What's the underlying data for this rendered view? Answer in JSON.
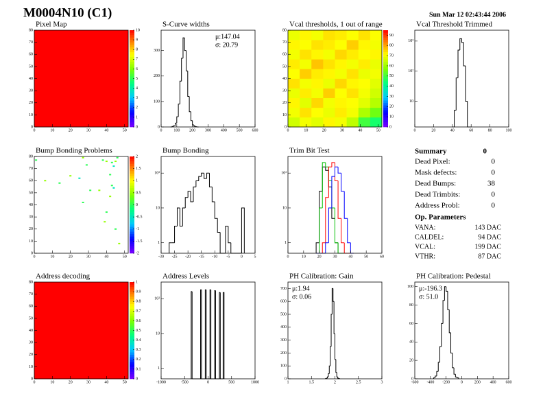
{
  "header": {
    "title": "M0004N10 (C1)",
    "date": "Sun Mar 12 02:43:44 2006"
  },
  "chart_data": [
    {
      "type": "heatmap",
      "title": "Pixel Map",
      "xlim": [
        0,
        52
      ],
      "xticks": [
        0,
        10,
        20,
        30,
        40,
        50
      ],
      "ylim": [
        0,
        80
      ],
      "yticks": [
        0,
        10,
        20,
        30,
        40,
        50,
        60,
        70,
        80
      ],
      "zlim": [
        0,
        10
      ],
      "zticks": [
        0,
        1,
        2,
        3,
        4,
        5,
        6,
        7,
        8,
        9,
        10
      ],
      "z": [
        [
          10
        ]
      ]
    },
    {
      "type": "histogram",
      "title": "S-Curve widths",
      "xlim": [
        0,
        600
      ],
      "xticks": [
        0,
        100,
        200,
        300,
        400,
        500,
        600
      ],
      "ylim": [
        0,
        380
      ],
      "yticks": [
        0,
        100,
        200,
        300
      ],
      "log_y": false,
      "stats": [
        "μ:147.04",
        "σ: 20.79"
      ],
      "stats_corner": "top-right",
      "bins": [
        60,
        70,
        80,
        90,
        100,
        110,
        120,
        130,
        140,
        150,
        160,
        170,
        180,
        190,
        200,
        210,
        220,
        230,
        240
      ],
      "values": [
        0,
        2,
        5,
        15,
        40,
        90,
        180,
        270,
        350,
        300,
        220,
        120,
        60,
        25,
        8,
        3,
        1,
        0
      ],
      "color": "#000000"
    },
    {
      "type": "heatmap",
      "title": "Vcal thresholds, 1 out of range",
      "xlim": [
        0,
        52
      ],
      "xticks": [
        0,
        10,
        20,
        30,
        40,
        50
      ],
      "ylim": [
        0,
        80
      ],
      "yticks": [
        0,
        10,
        20,
        30,
        40,
        50,
        60,
        70,
        80
      ],
      "zlim": [
        0,
        95
      ],
      "zticks": [
        0,
        10,
        20,
        30,
        40,
        50,
        60,
        70,
        80,
        90
      ],
      "z": [
        [
          66,
          70,
          68,
          72,
          70,
          64,
          50,
          45
        ],
        [
          70,
          74,
          71,
          69,
          73,
          70,
          62,
          55
        ],
        [
          72,
          68,
          75,
          70,
          72,
          71,
          68,
          63
        ],
        [
          69,
          73,
          70,
          76,
          71,
          74,
          70,
          66
        ],
        [
          74,
          70,
          72,
          69,
          75,
          72,
          71,
          68
        ],
        [
          71,
          76,
          73,
          72,
          70,
          74,
          69,
          70
        ],
        [
          73,
          70,
          77,
          74,
          72,
          70,
          73,
          69
        ],
        [
          70,
          74,
          72,
          70,
          75,
          73,
          71,
          72
        ],
        [
          72,
          71,
          74,
          73,
          71,
          76,
          72,
          70
        ],
        [
          69,
          72,
          70,
          74,
          73,
          71,
          74,
          71
        ]
      ]
    },
    {
      "type": "histogram",
      "title": "Vcal Threshold Trimmed",
      "xlim": [
        0,
        100
      ],
      "xticks": [
        0,
        20,
        40,
        60,
        80,
        100
      ],
      "ylim": [
        1.4,
        2300
      ],
      "log_y": true,
      "yticks": [
        {
          "value": 10,
          "label": "10"
        },
        {
          "value": 100,
          "label": "10²"
        },
        {
          "value": 1000,
          "label": "10³"
        }
      ],
      "bins": [
        40,
        42,
        44,
        46,
        48,
        50,
        52,
        54,
        56,
        58,
        60
      ],
      "values": [
        0,
        5,
        60,
        500,
        1200,
        900,
        150,
        10,
        1,
        0
      ],
      "color": "#000000"
    },
    {
      "type": "scatter",
      "title": "Bump Bonding Problems",
      "xlim": [
        0,
        52
      ],
      "xticks": [
        0,
        10,
        20,
        30,
        40,
        50
      ],
      "ylim": [
        0,
        80
      ],
      "yticks": [
        0,
        10,
        20,
        30,
        40,
        50,
        60,
        70,
        80
      ],
      "zlim": [
        -2,
        2
      ],
      "zticks": [
        {
          "value": -2,
          "label": "-2"
        },
        {
          "value": -1.5,
          "label": "-1.5"
        },
        {
          "value": -1,
          "label": "-1"
        },
        {
          "value": -0.5,
          "label": "-0.5"
        },
        0,
        0.5,
        1,
        1.5,
        2
      ],
      "x": [
        1,
        27,
        29,
        38,
        40,
        43,
        44,
        45,
        46,
        42,
        6,
        14,
        25,
        20,
        27,
        31,
        36,
        43,
        44,
        42,
        40,
        39,
        45,
        47
      ],
      "y": [
        77,
        79,
        73,
        77,
        76,
        75,
        72,
        76,
        79,
        65,
        60,
        58,
        62,
        64,
        42,
        52,
        52,
        56,
        54,
        47,
        34,
        26,
        20,
        8
      ],
      "z": [
        0,
        0.5,
        0,
        0,
        0.5,
        0,
        -0.5,
        0.5,
        0,
        0,
        0.5,
        0,
        -0.5,
        0.5,
        0,
        0,
        0.5,
        0,
        -0.5,
        0.5,
        0,
        0.5,
        0,
        0.5
      ]
    },
    {
      "type": "histogram",
      "title": "Bump Bonding",
      "xlim": [
        -30,
        5
      ],
      "xticks": [
        -30,
        -25,
        -20,
        -15,
        -10,
        -5,
        0,
        5
      ],
      "ylim": [
        0.5,
        300
      ],
      "log_y": true,
      "yticks": [
        1,
        10,
        {
          "value": 100,
          "label": "10²"
        }
      ],
      "bins": [
        -27,
        -26,
        -25,
        -24,
        -23,
        -22,
        -21,
        -20,
        -19,
        -18,
        -17,
        -16,
        -15,
        -14,
        -13,
        -12,
        -11,
        -10,
        -9,
        -8,
        -7,
        -6,
        -5,
        -4,
        -3,
        -2,
        -1,
        0,
        1
      ],
      "values": [
        1,
        1,
        3,
        10,
        3,
        10,
        20,
        30,
        15,
        40,
        60,
        80,
        100,
        70,
        100,
        40,
        15,
        5,
        2,
        0,
        0,
        3,
        1,
        0,
        0,
        0,
        0,
        10
      ],
      "color": "#000000"
    },
    {
      "type": "histogram",
      "title": "Trim Bit Test",
      "xlim": [
        0,
        60
      ],
      "xticks": [
        0,
        10,
        20,
        30,
        40,
        50,
        60
      ],
      "ylim": [
        0.5,
        300
      ],
      "log_y": true,
      "yticks": [
        1,
        10,
        {
          "value": 100,
          "label": "10²"
        }
      ],
      "bins": [
        18,
        20,
        22,
        24,
        26,
        28,
        30,
        32,
        34,
        36,
        38,
        40,
        42
      ],
      "series": [
        {
          "color": "#000000",
          "values": [
            1,
            30,
            150,
            120,
            40,
            5,
            1,
            0,
            0,
            0,
            0,
            0
          ]
        },
        {
          "color": "#00c000",
          "values": [
            0,
            10,
            200,
            150,
            60,
            10,
            1,
            0,
            0,
            0,
            0,
            0
          ]
        },
        {
          "color": "#ff0000",
          "values": [
            0,
            0,
            1,
            20,
            150,
            200,
            60,
            5,
            1,
            0,
            0,
            0
          ]
        },
        {
          "color": "#0000ff",
          "values": [
            0,
            0,
            0,
            1,
            10,
            80,
            150,
            100,
            30,
            5,
            1,
            0
          ]
        }
      ]
    },
    {
      "type": "heatmap",
      "title": "Address decoding",
      "xlim": [
        0,
        52
      ],
      "xticks": [
        0,
        10,
        20,
        30,
        40,
        50
      ],
      "ylim": [
        0,
        80
      ],
      "yticks": [
        0,
        10,
        20,
        30,
        40,
        50,
        60,
        70,
        80
      ],
      "zlim": [
        0,
        1
      ],
      "zticks": [
        0,
        0.1,
        0.2,
        0.3,
        0.4,
        0.5,
        0.6,
        0.7,
        0.8,
        0.9,
        1
      ],
      "z": [
        [
          1
        ]
      ]
    },
    {
      "type": "histogram",
      "title": "Address Levels",
      "xlim": [
        -1000,
        1000
      ],
      "xticks": [
        -1000,
        -500,
        0,
        500,
        1000
      ],
      "ylim": [
        0.5,
        300
      ],
      "log_y": true,
      "yticks": [
        1,
        10,
        {
          "value": 100,
          "label": "10²"
        }
      ],
      "bins": [
        -360,
        -340,
        -160,
        -140,
        -60,
        -40,
        40,
        60,
        140,
        160,
        240,
        260,
        320,
        340
      ],
      "values": [
        160,
        0,
        180,
        0,
        180,
        0,
        180,
        0,
        170,
        0,
        150,
        0,
        150
      ],
      "color": "#000000"
    },
    {
      "type": "histogram",
      "title": "PH Calibration: Gain",
      "xlim": [
        1,
        3
      ],
      "xticks": [
        1,
        1.5,
        2,
        2.5,
        3
      ],
      "ylim": [
        0,
        750
      ],
      "log_y": false,
      "yticks": [
        0,
        100,
        200,
        300,
        400,
        500,
        600,
        700
      ],
      "stats": [
        "μ:1.94",
        "σ: 0.06"
      ],
      "stats_corner": "top-left",
      "bins": [
        1.8,
        1.82,
        1.84,
        1.86,
        1.88,
        1.9,
        1.92,
        1.94,
        1.96,
        1.98,
        2,
        2.02,
        2.04,
        2.06,
        2.08,
        2.1
      ],
      "values": [
        2,
        5,
        15,
        40,
        100,
        250,
        500,
        700,
        600,
        350,
        150,
        50,
        15,
        5,
        1
      ],
      "color": "#000000"
    },
    {
      "type": "histogram",
      "title": "PH Calibration: Pedestal",
      "xlim": [
        -600,
        600
      ],
      "xticks": [
        -600,
        -400,
        -200,
        0,
        200,
        400,
        600
      ],
      "ylim": [
        0,
        105
      ],
      "log_y": false,
      "yticks": [
        0,
        20,
        40,
        60,
        80,
        100
      ],
      "stats": [
        "μ:-196.3",
        "σ: 51.0"
      ],
      "stats_corner": "top-left",
      "bins": [
        -360,
        -340,
        -320,
        -300,
        -280,
        -260,
        -240,
        -220,
        -200,
        -180,
        -160,
        -140,
        -120,
        -100,
        -80,
        -60,
        -40
      ],
      "values": [
        1,
        3,
        8,
        18,
        35,
        60,
        85,
        100,
        95,
        75,
        50,
        28,
        12,
        5,
        2,
        1
      ],
      "color": "#000000"
    }
  ],
  "summary": {
    "title": "Summary",
    "total": "0",
    "rows": [
      [
        "Dead Pixel:",
        "0"
      ],
      [
        "Mask defects:",
        "0"
      ],
      [
        "Dead Bumps:",
        "38"
      ],
      [
        "Dead Trimbits:",
        "0"
      ],
      [
        "Address Probl:",
        "0"
      ]
    ],
    "params_title": "Op. Parameters",
    "params": [
      [
        "VANA:",
        "143 DAC"
      ],
      [
        "CALDEL:",
        "94 DAC"
      ],
      [
        "VCAL:",
        "199 DAC"
      ],
      [
        "VTHR:",
        "87 DAC"
      ]
    ]
  }
}
